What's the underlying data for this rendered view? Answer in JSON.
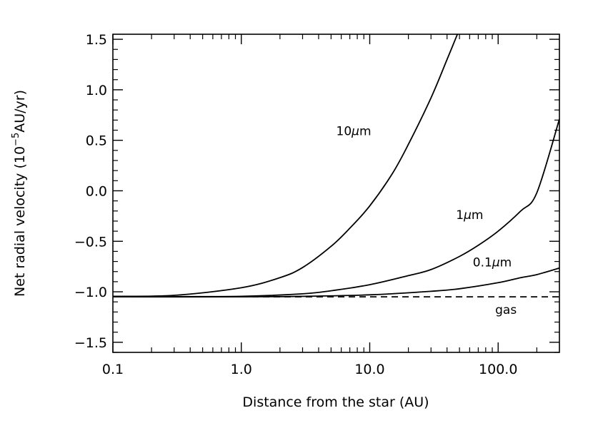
{
  "chart_data": {
    "type": "line",
    "title": "",
    "xlabel": "Distance from the star (AU)",
    "ylabel": "Net radial velocity (10",
    "ylabel_exponent": "−5",
    "ylabel_unit": "AU/yr)",
    "xscale": "log",
    "xlim": [
      0.1,
      300
    ],
    "ylim": [
      -1.6,
      1.55
    ],
    "x_ticks": [
      0.1,
      1.0,
      10.0,
      100.0
    ],
    "x_tick_labels": [
      "0.1",
      "1.0",
      "10.0",
      "100.0"
    ],
    "y_ticks": [
      -1.5,
      -1.0,
      -0.5,
      0.0,
      0.5,
      1.0,
      1.5
    ],
    "y_tick_labels": [
      "−1.5",
      "−1.0",
      "−0.5",
      "0.0",
      "0.5",
      "1.0",
      "1.5"
    ],
    "grid": false,
    "legend": "none",
    "series": [
      {
        "name": "10μm",
        "label_parts": [
          "10",
          "μ",
          "m"
        ],
        "style": "solid",
        "x": [
          0.1,
          0.3,
          1,
          2,
          3,
          5,
          7,
          10,
          15,
          20,
          30,
          40,
          50
        ],
        "y": [
          -1.045,
          -1.035,
          -0.96,
          -0.86,
          -0.76,
          -0.55,
          -0.37,
          -0.15,
          0.17,
          0.46,
          0.92,
          1.3,
          1.6
        ]
      },
      {
        "name": "1μm",
        "label_parts": [
          "1",
          "μ",
          "m"
        ],
        "style": "solid",
        "x": [
          0.1,
          0.3,
          1,
          3,
          5,
          10,
          20,
          30,
          50,
          70,
          100,
          150,
          200,
          300
        ],
        "y": [
          -1.05,
          -1.048,
          -1.045,
          -1.02,
          -0.99,
          -0.93,
          -0.84,
          -0.78,
          -0.65,
          -0.54,
          -0.4,
          -0.2,
          -0.02,
          0.71
        ]
      },
      {
        "name": "0.1μm",
        "label_parts": [
          "0.1",
          "μ",
          "m"
        ],
        "style": "solid",
        "x": [
          0.1,
          1,
          3,
          10,
          30,
          50,
          100,
          150,
          200,
          300
        ],
        "y": [
          -1.05,
          -1.05,
          -1.045,
          -1.03,
          -0.995,
          -0.97,
          -0.91,
          -0.86,
          -0.83,
          -0.765
        ]
      },
      {
        "name": "gas",
        "label_parts": [
          "gas",
          "",
          ""
        ],
        "style": "dashed",
        "x": [
          0.1,
          300
        ],
        "y": [
          -1.05,
          -1.05
        ]
      }
    ]
  }
}
